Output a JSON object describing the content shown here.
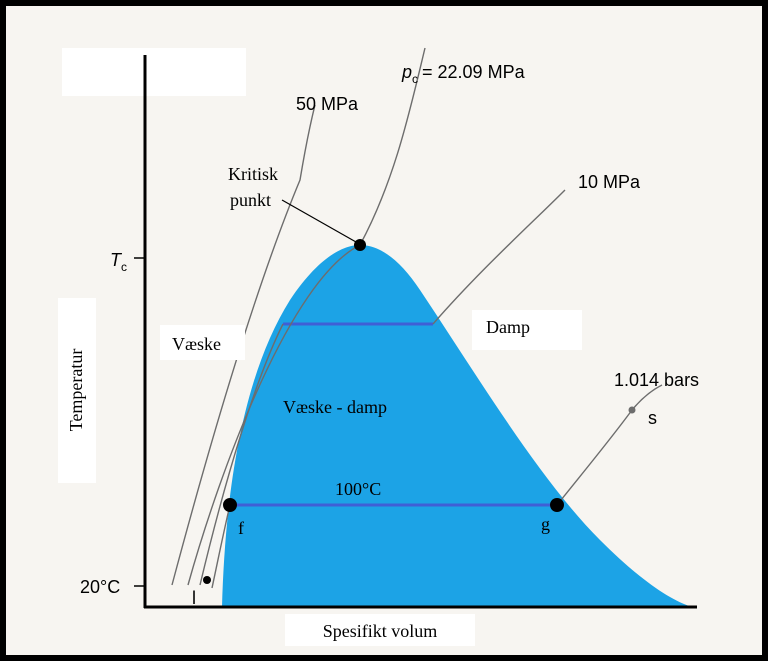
{
  "labels": {
    "pc": {
      "symbol": "p",
      "subscript": "c",
      "value": "= 22.09 MPa"
    },
    "p50": "50 MPa",
    "p10": "10 MPa",
    "critical_point": [
      "Kritisk",
      "punkt"
    ],
    "tc": {
      "symbol": "T",
      "subscript": "c"
    },
    "liquid": "Væske",
    "vapor": "Damp",
    "p1014": "1.014 bars",
    "point_s": "s",
    "mixture": "Væske - damp",
    "t100": "100°C",
    "point_f": "f",
    "point_g": "g",
    "t20": "20°C",
    "point_l": "l"
  },
  "axes": {
    "y": "Temperatur",
    "x": "Spesifikt volum"
  }
}
